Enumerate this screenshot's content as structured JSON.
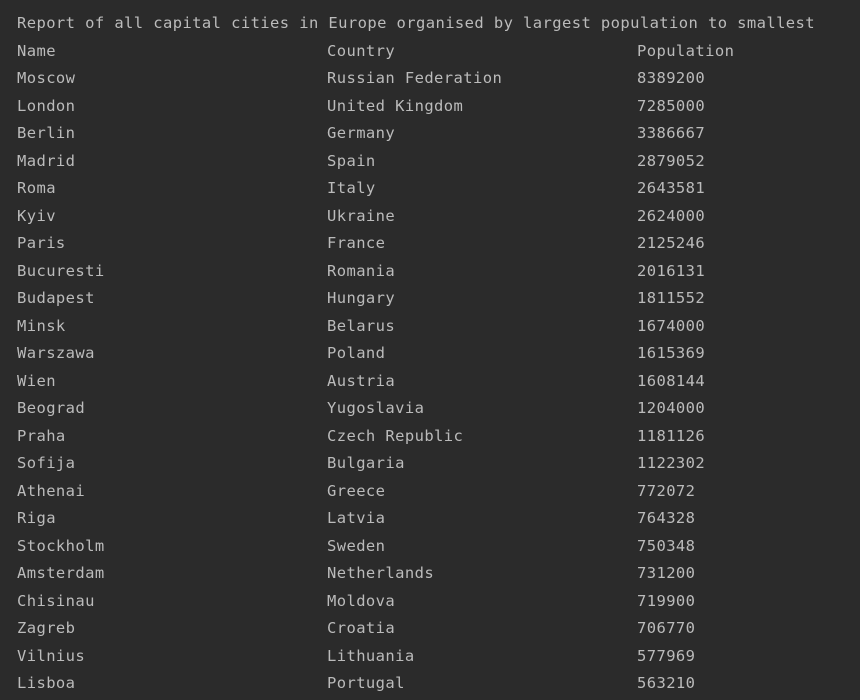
{
  "console": {
    "title": "Report of all capital cities in Europe organised by largest population to smallest",
    "headers": {
      "name": "Name",
      "country": "Country",
      "population": "Population"
    },
    "rows": [
      {
        "name": "Moscow",
        "country": "Russian Federation",
        "population": "8389200"
      },
      {
        "name": "London",
        "country": "United Kingdom",
        "population": "7285000"
      },
      {
        "name": "Berlin",
        "country": "Germany",
        "population": "3386667"
      },
      {
        "name": "Madrid",
        "country": "Spain",
        "population": "2879052"
      },
      {
        "name": "Roma",
        "country": "Italy",
        "population": "2643581"
      },
      {
        "name": "Kyiv",
        "country": "Ukraine",
        "population": "2624000"
      },
      {
        "name": "Paris",
        "country": "France",
        "population": "2125246"
      },
      {
        "name": "Bucuresti",
        "country": "Romania",
        "population": "2016131"
      },
      {
        "name": "Budapest",
        "country": "Hungary",
        "population": "1811552"
      },
      {
        "name": "Minsk",
        "country": "Belarus",
        "population": "1674000"
      },
      {
        "name": "Warszawa",
        "country": "Poland",
        "population": "1615369"
      },
      {
        "name": "Wien",
        "country": "Austria",
        "population": "1608144"
      },
      {
        "name": "Beograd",
        "country": "Yugoslavia",
        "population": "1204000"
      },
      {
        "name": "Praha",
        "country": "Czech Republic",
        "population": "1181126"
      },
      {
        "name": "Sofija",
        "country": "Bulgaria",
        "population": "1122302"
      },
      {
        "name": "Athenai",
        "country": "Greece",
        "population": "772072"
      },
      {
        "name": "Riga",
        "country": "Latvia",
        "population": "764328"
      },
      {
        "name": "Stockholm",
        "country": "Sweden",
        "population": "750348"
      },
      {
        "name": "Amsterdam",
        "country": "Netherlands",
        "population": "731200"
      },
      {
        "name": "Chisinau",
        "country": "Moldova",
        "population": "719900"
      },
      {
        "name": "Zagreb",
        "country": "Croatia",
        "population": "706770"
      },
      {
        "name": "Vilnius",
        "country": "Lithuania",
        "population": "577969"
      },
      {
        "name": "Lisboa",
        "country": "Portugal",
        "population": "563210"
      }
    ]
  },
  "colors": {
    "background": "#2b2b2b",
    "text": "#bbbbbb"
  }
}
